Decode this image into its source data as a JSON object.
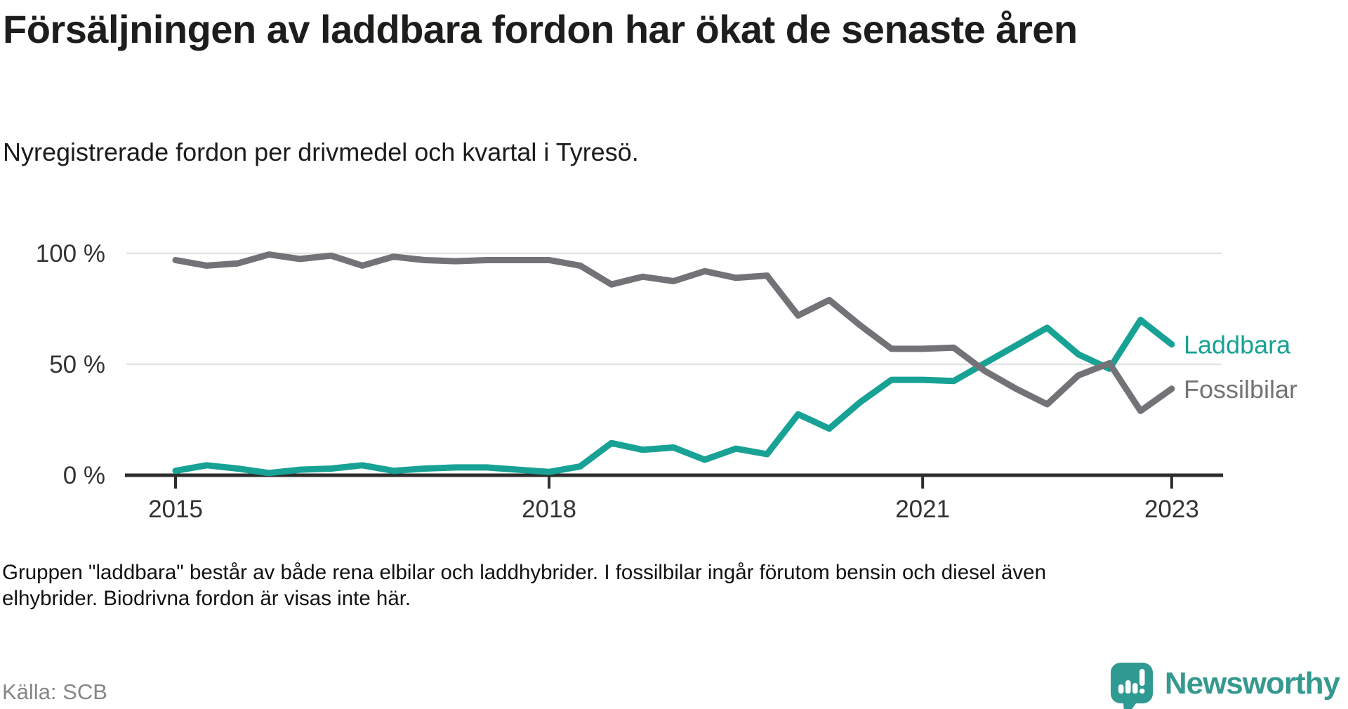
{
  "header": {
    "title": "Försäljningen av laddbara fordon har ökat de senaste åren",
    "subtitle": "Nyregistrerade fordon per drivmedel och kvartal i Tyresö."
  },
  "chart_data": {
    "type": "line",
    "title": "Försäljningen av laddbara fordon har ökat de senaste åren",
    "subtitle": "Nyregistrerade fordon per drivmedel och kvartal i Tyresö.",
    "unit": "%",
    "ylim": [
      0,
      100
    ],
    "grid": "horizontal",
    "legend_position": "right-of-line-end",
    "x": [
      "2015Q1",
      "2015Q2",
      "2015Q3",
      "2015Q4",
      "2016Q1",
      "2016Q2",
      "2016Q3",
      "2016Q4",
      "2017Q1",
      "2017Q2",
      "2017Q3",
      "2017Q4",
      "2018Q1",
      "2018Q2",
      "2018Q3",
      "2018Q4",
      "2019Q1",
      "2019Q2",
      "2019Q3",
      "2019Q4",
      "2020Q1",
      "2020Q2",
      "2020Q3",
      "2020Q4",
      "2021Q1",
      "2021Q2",
      "2021Q3",
      "2021Q4",
      "2022Q1",
      "2022Q2",
      "2022Q3",
      "2022Q4",
      "2023Q1"
    ],
    "x_tick_labels": [
      "2015",
      "2018",
      "2021",
      "2023"
    ],
    "y_ticks": [
      {
        "label": "100 %",
        "value": 100
      },
      {
        "label": "50 %",
        "value": 50
      },
      {
        "label": "0 %",
        "value": 0
      }
    ],
    "series": [
      {
        "name": "Laddbara",
        "color": "#17a295",
        "values": [
          2,
          4.5,
          3,
          1,
          2.5,
          3,
          4.5,
          2,
          3,
          3.5,
          3.5,
          2.5,
          1.5,
          4,
          14.5,
          11.5,
          12.5,
          7,
          12,
          9.5,
          27.5,
          21,
          33,
          43,
          43,
          42.5,
          50.5,
          58.5,
          66.5,
          54.5,
          48,
          70,
          59
        ]
      },
      {
        "name": "Fossilbilar",
        "color": "#737377",
        "values": [
          97,
          94.5,
          95.5,
          99.5,
          97.5,
          99,
          94.5,
          98.5,
          97,
          96.5,
          97,
          97,
          97,
          94.5,
          86,
          89.5,
          87.5,
          92,
          89,
          90,
          72,
          79,
          67.5,
          57,
          57,
          57.5,
          47,
          39,
          32,
          45,
          50.5,
          29,
          39
        ]
      }
    ],
    "colors": {
      "axis": "#2d2d2d",
      "gridline": "#e3e3e3",
      "tick_text": "#333333"
    }
  },
  "footnote": {
    "lines": [
      "Gruppen \"laddbara\" består av både rena elbilar och laddhybrider. I fossilbilar ingår förutom bensin och diesel även",
      "elhybrider. Biodrivna fordon är visas inte här."
    ]
  },
  "footer": {
    "source": "Källa: SCB",
    "brand": {
      "name": "Newsworthy",
      "color": "#35998f",
      "mark_color": "#2f9a92"
    }
  }
}
